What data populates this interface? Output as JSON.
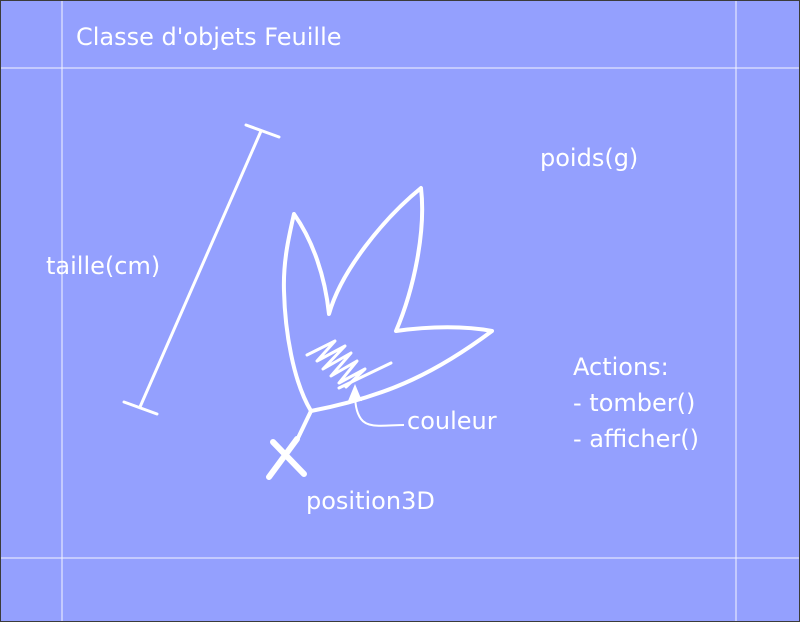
{
  "colors": {
    "background": "#94a0fe",
    "ink": "#ffffff",
    "border": "#3b3b3b"
  },
  "title": "Classe d'objets Feuille",
  "labels": {
    "weight": "poids(g)",
    "size": "taille(cm)",
    "color": "couleur",
    "position": "position3D"
  },
  "actions": {
    "heading": "Actions:",
    "items": [
      "- tomber()",
      "- afficher()"
    ]
  }
}
